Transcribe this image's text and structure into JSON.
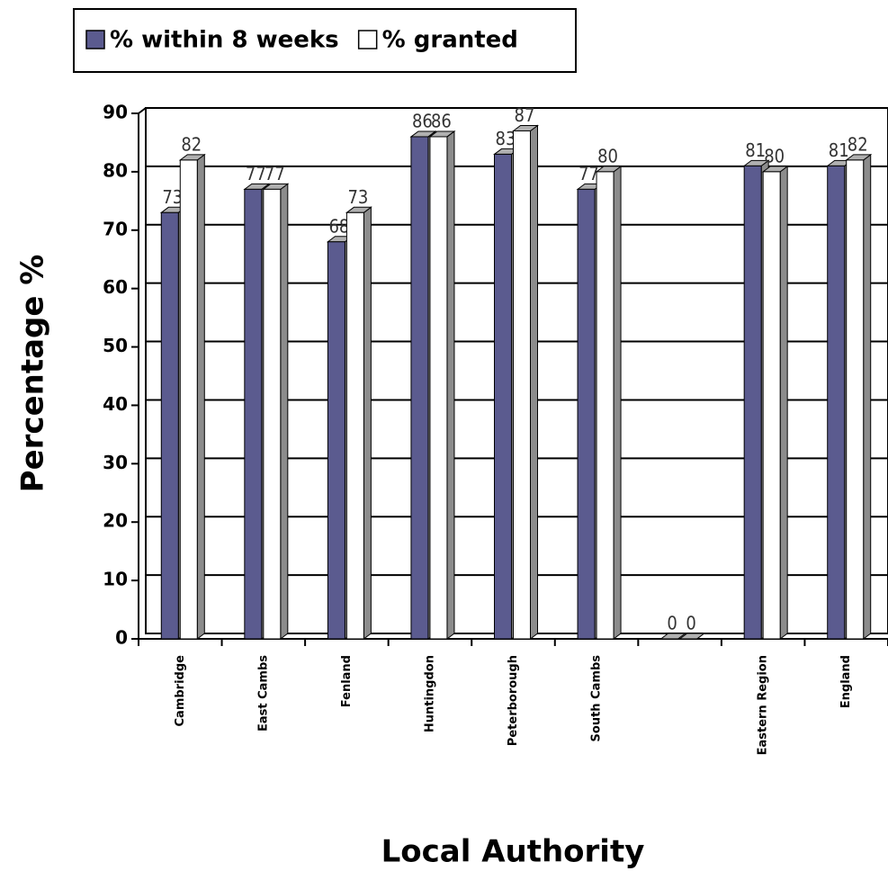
{
  "chart_data": {
    "type": "bar",
    "x_label": "Local Authority",
    "y_label": "Percentage %",
    "categories": [
      "Cambridge",
      "East Cambs",
      "Fenland",
      "Huntingdon",
      "Peterborough",
      "South Cambs",
      null,
      "Eastern Region",
      "England"
    ],
    "series": [
      {
        "name": "% within 8 weeks",
        "color": "#5b5b8f",
        "values": [
          73,
          77,
          68,
          86,
          83,
          77,
          0,
          81,
          81
        ]
      },
      {
        "name": "% granted",
        "color": "#ffffff",
        "values": [
          82,
          77,
          73,
          86,
          87,
          80,
          0,
          80,
          82
        ]
      }
    ],
    "ylim": [
      0,
      90
    ],
    "yticks": [
      0,
      10,
      20,
      30,
      40,
      50,
      60,
      70,
      80,
      90
    ],
    "grid": true,
    "legend": "top-left"
  }
}
